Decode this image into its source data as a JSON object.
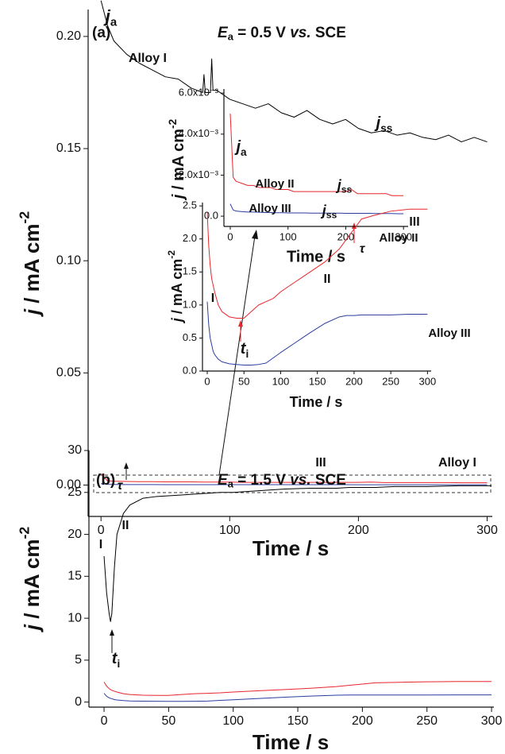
{
  "chart_data": [
    {
      "type": "line",
      "panel_label": "(a)",
      "title": [
        "E",
        "a",
        " = 0.5 V ",
        "vs.",
        " SCE"
      ],
      "annotations": [
        [
          "j",
          "a"
        ],
        [
          "j",
          "ss"
        ]
      ],
      "x_label": "Time / s",
      "y_label": [
        "j",
        " / mA cm",
        "-2"
      ],
      "xlim": [
        -10,
        304
      ],
      "ylim": [
        -0.014,
        0.212
      ],
      "xticks": [
        0,
        100,
        200,
        300
      ],
      "yticks": [
        {
          "value": 0,
          "label": "0.00"
        },
        0.05,
        {
          "value": 0.1,
          "label": "0.10"
        },
        0.15,
        {
          "value": 0.2,
          "label": "0.20"
        }
      ],
      "x": [
        0,
        5,
        10,
        20,
        30,
        40,
        50,
        60,
        70,
        79,
        80,
        81,
        85,
        86,
        87,
        90,
        100,
        110,
        120,
        130,
        140,
        150,
        160,
        170,
        180,
        190,
        200,
        210,
        220,
        230,
        240,
        250,
        260,
        270,
        280,
        290,
        300
      ],
      "series": [
        {
          "name": "Alloy I",
          "color": "#000000",
          "values": [
            0.216,
            0.205,
            0.198,
            0.192,
            0.188,
            0.185,
            0.182,
            0.181,
            0.177,
            0.175,
            0.183,
            0.175,
            0.175,
            0.19,
            0.176,
            0.176,
            0.172,
            0.17,
            0.168,
            0.17,
            0.166,
            0.164,
            0.167,
            0.163,
            0.161,
            0.163,
            0.159,
            0.157,
            0.158,
            0.156,
            0.157,
            0.155,
            0.154,
            0.156,
            0.153,
            0.155,
            0.153
          ]
        },
        {
          "color": "#e8262d",
          "values": [
            0.005,
            0.0019,
            0.0017,
            0.0016,
            0.0015,
            0.0015,
            0.0014,
            0.0014,
            0.0014,
            0.0013,
            0.0013,
            0.0013,
            0.0013,
            0.0013,
            0.0013,
            0.0013,
            0.0013,
            0.0012,
            0.0012,
            0.0012,
            0.0012,
            0.0012,
            0.0012,
            0.0012,
            0.0012,
            0.0012,
            0.0012,
            0.0013,
            0.0011,
            0.0011,
            0.0011,
            0.0011,
            0.0011,
            0.0011,
            0.001,
            0.001,
            0.001
          ]
        },
        {
          "color": "#2b3ea0",
          "values": [
            0.0006,
            0.0003,
            0.00025,
            0.00022,
            0.0002,
            0.0002,
            0.00019,
            0.00018,
            0.00018,
            0.00017,
            0.00017,
            0.00017,
            0.00017,
            0.00017,
            0.00017,
            0.00017,
            0.00016,
            0.00016,
            0.00016,
            0.00016,
            0.00015,
            0.00015,
            0.00015,
            0.00015,
            0.00015,
            0.00015,
            0.00014,
            0.00014,
            0.00014,
            0.00014,
            0.00014,
            0.00013,
            0.00013,
            0.00013,
            0.00013,
            0.00012,
            0.00012
          ]
        }
      ]
    },
    {
      "type": "line",
      "annotations": [
        [
          "j",
          "a"
        ],
        [
          "j",
          "ss"
        ],
        [
          "j",
          "ss"
        ]
      ],
      "x_label": "Time / s",
      "y_label": [
        "j",
        " / mA cm",
        "-2"
      ],
      "xlim": [
        -11,
        308
      ],
      "ylim": [
        -0.0005,
        0.0062
      ],
      "xticks": [
        0,
        100,
        200,
        300
      ],
      "yticks": [
        {
          "value": 0,
          "label": "0.0"
        },
        {
          "value": 0.002,
          "label": "2.0x10⁻³"
        },
        {
          "value": 0.004,
          "label": "4.0x10⁻³"
        },
        {
          "value": 0.006,
          "label": "6.0x10⁻³"
        }
      ],
      "x": [
        0,
        5,
        10,
        20,
        30,
        40,
        50,
        60,
        70,
        79,
        80,
        81,
        85,
        86,
        87,
        90,
        100,
        110,
        120,
        130,
        140,
        150,
        160,
        170,
        180,
        190,
        200,
        210,
        220,
        230,
        240,
        250,
        260,
        270,
        280,
        290,
        300
      ],
      "series": [
        {
          "name": "Alloy II",
          "color": "#e8262d",
          "values": [
            0.005,
            0.0019,
            0.0017,
            0.0016,
            0.0015,
            0.0015,
            0.0014,
            0.0014,
            0.0014,
            0.0013,
            0.0013,
            0.0013,
            0.0013,
            0.0013,
            0.0013,
            0.0013,
            0.0013,
            0.0012,
            0.0012,
            0.0012,
            0.0012,
            0.0012,
            0.0012,
            0.0012,
            0.0012,
            0.0012,
            0.0012,
            0.0013,
            0.0011,
            0.0011,
            0.0011,
            0.0011,
            0.0011,
            0.0011,
            0.001,
            0.001,
            0.001
          ]
        },
        {
          "name": "Alloy III",
          "color": "#2b3ea0",
          "values": [
            0.0006,
            0.0003,
            0.00025,
            0.00022,
            0.0002,
            0.0002,
            0.00019,
            0.00018,
            0.00018,
            0.00017,
            0.00017,
            0.00017,
            0.00017,
            0.00017,
            0.00017,
            0.00017,
            0.00016,
            0.00016,
            0.00016,
            0.00016,
            0.00015,
            0.00015,
            0.00015,
            0.00015,
            0.00015,
            0.00015,
            0.00014,
            0.00014,
            0.00014,
            0.00014,
            0.00014,
            0.00013,
            0.00013,
            0.00013,
            0.00013,
            0.00012,
            0.00012
          ]
        }
      ]
    },
    {
      "type": "line",
      "panel_label": "(b)",
      "title": [
        "E",
        "a",
        " = 1.5 V ",
        "vs.",
        " SCE"
      ],
      "annotations": [
        [
          "I"
        ],
        [
          "II"
        ],
        [
          "III"
        ],
        [
          "t",
          "i"
        ],
        [
          "τ"
        ]
      ],
      "x_label": "Time / s",
      "y_label": [
        "j",
        " / mA cm",
        "-2"
      ],
      "xlim": [
        -11.7,
        301.8
      ],
      "ylim": [
        -0.6,
        30
      ],
      "xticks": [
        0,
        50,
        100,
        150,
        200,
        250,
        300
      ],
      "yticks": [
        0,
        5,
        10,
        15,
        20,
        25,
        30
      ],
      "x": [
        0,
        2,
        4,
        5,
        6,
        8,
        10,
        15,
        20,
        30,
        40,
        50,
        60,
        70,
        80,
        90,
        100,
        120,
        140,
        160,
        180,
        190,
        200,
        210,
        225,
        250,
        275,
        300
      ],
      "series": [
        {
          "name": "Alloy I",
          "color": "#000000",
          "values": [
            17.4,
            13,
            10.5,
            9.6,
            10.5,
            16,
            20,
            22.5,
            23.5,
            24.3,
            24.5,
            24.6,
            24.7,
            24.8,
            24.9,
            25,
            25,
            25.2,
            25.4,
            25.5,
            25.5,
            25.6,
            25.6,
            25.6,
            25.7,
            25.7,
            25.8,
            25.8
          ]
        },
        {
          "color": "#e8262d",
          "values": [
            2.4,
            1.9,
            1.6,
            1.5,
            1.4,
            1.3,
            1.2,
            1.0,
            0.9,
            0.82,
            0.8,
            0.8,
            0.9,
            1.0,
            1.05,
            1.1,
            1.2,
            1.35,
            1.5,
            1.65,
            1.85,
            2.0,
            2.15,
            2.3,
            2.35,
            2.42,
            2.45,
            2.45
          ]
        },
        {
          "color": "#2b3ea0",
          "values": [
            1.05,
            0.7,
            0.5,
            0.45,
            0.4,
            0.3,
            0.25,
            0.18,
            0.14,
            0.11,
            0.1,
            0.09,
            0.09,
            0.1,
            0.12,
            0.2,
            0.28,
            0.43,
            0.58,
            0.72,
            0.82,
            0.84,
            0.84,
            0.85,
            0.85,
            0.85,
            0.86,
            0.86
          ]
        }
      ]
    },
    {
      "type": "line",
      "annotations": [
        [
          "I"
        ],
        [
          "II"
        ],
        [
          "III"
        ],
        [
          "t",
          "i"
        ],
        [
          "τ"
        ]
      ],
      "x_label": "Time / s",
      "y_label": [
        "j",
        " / mA cm",
        "-2"
      ],
      "xlim": [
        -6.5,
        305
      ],
      "ylim": [
        0,
        2.55
      ],
      "xticks": [
        0,
        50,
        100,
        150,
        200,
        250,
        300
      ],
      "yticks": [
        {
          "value": 0,
          "label": "0.0"
        },
        0.5,
        {
          "value": 1,
          "label": "1.0"
        },
        1.5,
        {
          "value": 2,
          "label": "2.0"
        },
        2.5
      ],
      "x": [
        0,
        2,
        4,
        5,
        6,
        8,
        10,
        15,
        20,
        30,
        40,
        50,
        60,
        70,
        80,
        90,
        100,
        120,
        140,
        160,
        180,
        190,
        200,
        210,
        225,
        250,
        275,
        300
      ],
      "series": [
        {
          "name": "Alloy II",
          "color": "#e8262d",
          "values": [
            2.4,
            1.9,
            1.6,
            1.5,
            1.4,
            1.3,
            1.2,
            1.0,
            0.9,
            0.82,
            0.8,
            0.8,
            0.9,
            1.0,
            1.05,
            1.1,
            1.2,
            1.35,
            1.5,
            1.65,
            1.85,
            2.0,
            2.15,
            2.3,
            2.35,
            2.42,
            2.45,
            2.45
          ]
        },
        {
          "name": "Alloy III",
          "color": "#2b3ea0",
          "values": [
            1.05,
            0.7,
            0.5,
            0.45,
            0.4,
            0.3,
            0.25,
            0.18,
            0.14,
            0.11,
            0.1,
            0.09,
            0.09,
            0.1,
            0.12,
            0.2,
            0.28,
            0.43,
            0.58,
            0.72,
            0.82,
            0.84,
            0.84,
            0.85,
            0.85,
            0.85,
            0.86,
            0.86
          ]
        }
      ]
    }
  ]
}
